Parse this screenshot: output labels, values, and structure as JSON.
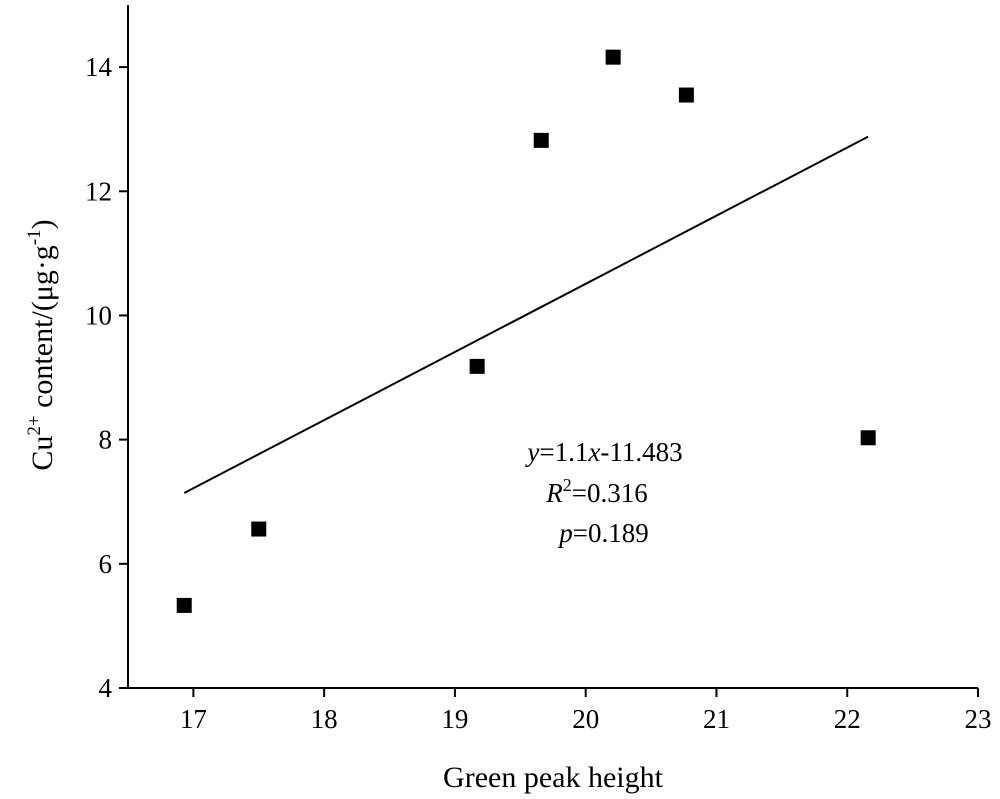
{
  "chart_data": {
    "type": "scatter",
    "xlabel": "Green peak height",
    "ylabel": {
      "prefix": "Cu",
      "superscript": "2+",
      "suffix": " content/(μg·g",
      "unit_superscript": "-1",
      "close": ")"
    },
    "xlim": [
      16.5,
      23
    ],
    "ylim": [
      4,
      15
    ],
    "xticks": [
      17,
      18,
      19,
      20,
      21,
      22,
      23
    ],
    "yticks": [
      4,
      6,
      8,
      10,
      12,
      14
    ],
    "points": [
      {
        "x": 16.93,
        "y": 5.33
      },
      {
        "x": 17.5,
        "y": 6.56
      },
      {
        "x": 19.17,
        "y": 9.18
      },
      {
        "x": 19.66,
        "y": 12.82
      },
      {
        "x": 20.21,
        "y": 14.16
      },
      {
        "x": 20.77,
        "y": 13.55
      },
      {
        "x": 22.16,
        "y": 8.03
      }
    ],
    "fit_line": {
      "x": [
        16.93,
        22.16
      ],
      "y": [
        7.14,
        12.88
      ]
    },
    "annotation": {
      "equation": {
        "y_var": "y",
        "eq_mid": "=1.1",
        "x_var": "x",
        "eq_rest": "-11.483"
      },
      "r2": {
        "var": "R",
        "sup": "2",
        "rest": "=0.316"
      },
      "p": {
        "var": "p",
        "rest": "=0.189"
      }
    },
    "grid": false,
    "legend": "none"
  }
}
